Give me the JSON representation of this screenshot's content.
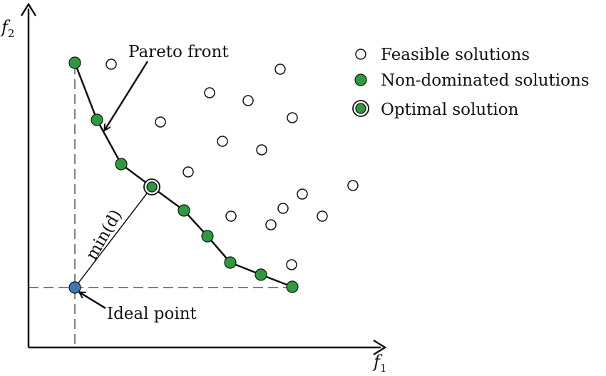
{
  "diagram": {
    "axes": {
      "x_label": "f",
      "x_subscript": "1",
      "y_label": "f",
      "y_subscript": "2"
    },
    "annotations": {
      "pareto_front": "Pareto front",
      "ideal_point": "Ideal point",
      "min_distance": "min(d)"
    },
    "legend": {
      "feasible": "Feasible solutions",
      "non_dominated": "Non-dominated solutions",
      "optimal": "Optimal solution"
    },
    "colors": {
      "non_dominated_fill": "#2e9a3e",
      "ideal_fill": "#3a78b0",
      "feasible_fill": "#ffffff",
      "stroke": "#111111"
    },
    "feasible_count": 17,
    "non_dominated_count": 10,
    "optimal_count": 1,
    "ideal_count": 1
  }
}
